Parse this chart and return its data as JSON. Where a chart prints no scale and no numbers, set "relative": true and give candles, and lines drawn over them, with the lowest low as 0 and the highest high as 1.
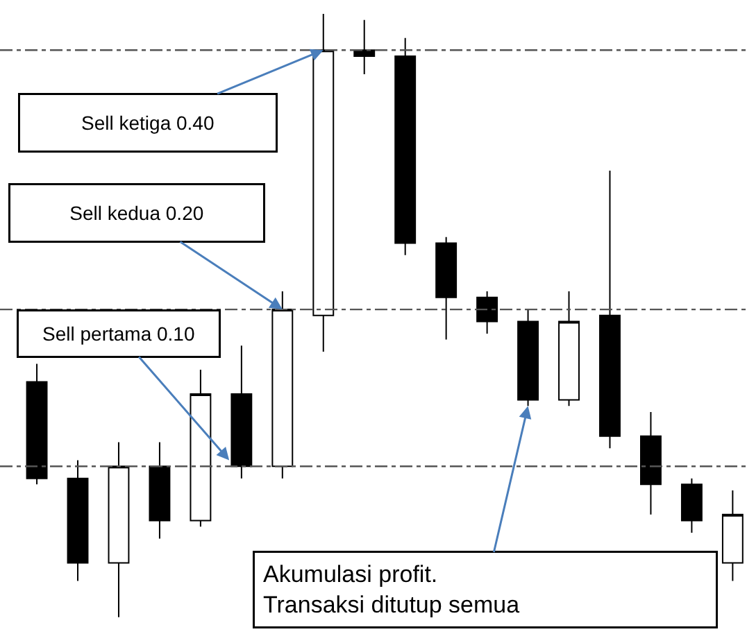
{
  "chart_data": {
    "type": "candlestick",
    "relative": true,
    "categories": [
      null,
      null,
      null,
      null,
      null,
      null,
      null,
      null,
      null,
      null,
      null,
      null,
      null,
      null,
      null,
      null,
      null,
      null
    ],
    "ohlc": [
      [
        0.39,
        0.42,
        0.22,
        0.23
      ],
      [
        0.23,
        0.26,
        0.06,
        0.09
      ],
      [
        0.09,
        0.29,
        0.0,
        0.25
      ],
      [
        0.25,
        0.29,
        0.13,
        0.16
      ],
      [
        0.16,
        0.41,
        0.15,
        0.37
      ],
      [
        0.37,
        0.45,
        0.23,
        0.25
      ],
      [
        0.25,
        0.54,
        0.23,
        0.51
      ],
      [
        0.5,
        1.0,
        0.44,
        0.94
      ],
      [
        0.94,
        0.99,
        0.9,
        0.93
      ],
      [
        0.93,
        0.96,
        0.6,
        0.62
      ],
      [
        0.62,
        0.63,
        0.46,
        0.53
      ],
      [
        0.53,
        0.54,
        0.47,
        0.49
      ],
      [
        0.49,
        0.51,
        0.35,
        0.36
      ],
      [
        0.36,
        0.54,
        0.35,
        0.49
      ],
      [
        0.5,
        0.74,
        0.28,
        0.3
      ],
      [
        0.3,
        0.34,
        0.17,
        0.22
      ],
      [
        0.22,
        0.23,
        0.14,
        0.16
      ],
      [
        0.09,
        0.21,
        0.06,
        0.17
      ]
    ],
    "ref_lines": [
      {
        "axis": "y",
        "value": 0.94,
        "color": "#555555",
        "line_style": "dashed"
      },
      {
        "axis": "y",
        "value": 0.51,
        "color": "#555555",
        "line_style": "dashed"
      },
      {
        "axis": "y",
        "value": 0.25,
        "color": "#555555",
        "line_style": "dashed"
      }
    ],
    "annotations": [
      "Sell ketiga 0.40",
      "Sell kedua 0.20",
      "Sell pertama 0.10",
      "Akumulasi profit.\nTransaksi ditutup semua"
    ]
  }
}
